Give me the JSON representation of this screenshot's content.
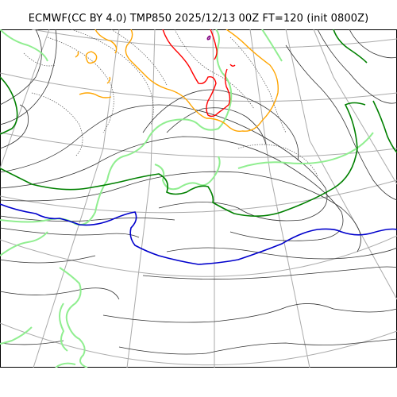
{
  "title": "ECMWF(CC BY 4.0) TMP850 2025/12/13 00Z FT=120 (init 0800Z)",
  "colors": {
    "background": "#ffffff",
    "frame": "#000000",
    "graticule": "#aaaaaa",
    "pressure_contour": "#333333",
    "light_green_isotherm": "#90ee90",
    "dark_green_isotherm": "#008000",
    "blue_isotherm": "#0000cc",
    "orange_isotherm": "#ffa500",
    "red_isotherm": "#ff0000",
    "purple_isotherm": "#800080"
  }
}
